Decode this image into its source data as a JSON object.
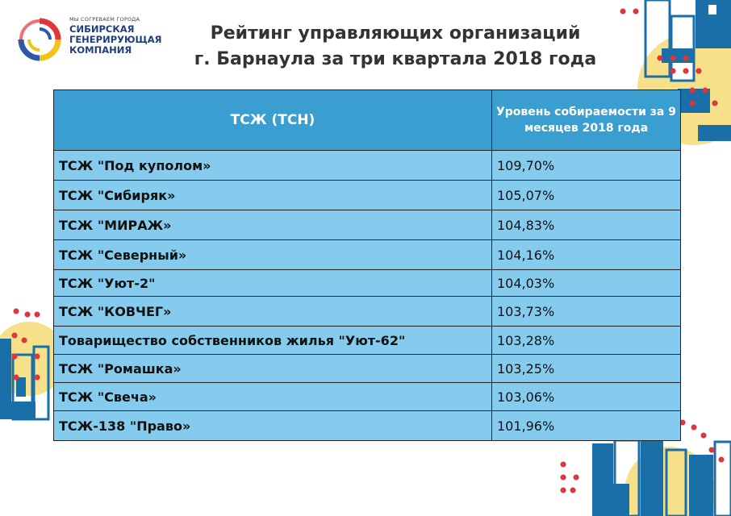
{
  "logo": {
    "tagline": "МЫ СОГРЕВАЕМ ГОРОДА",
    "name_lines": [
      "СИБИРСКАЯ",
      "ГЕНЕРИРУЮЩАЯ",
      "КОМПАНИЯ"
    ],
    "colors": {
      "red": "#e2343b",
      "yellow": "#f2c318",
      "blue": "#2d5aa8"
    }
  },
  "title_lines": [
    "Рейтинг управляющих организаций",
    "г. Барнаула за три квартала 2018 года"
  ],
  "table": {
    "headers": [
      "ТСЖ (ТСН)",
      "Уровень собираемости за 9 месяцев 2018 года"
    ],
    "rows": [
      {
        "name": "ТСЖ \"Под куполом»",
        "value": "109,70%"
      },
      {
        "name": "ТСЖ \"Сибиряк»",
        "value": "105,07%"
      },
      {
        "name": "ТСЖ \"МИРАЖ»",
        "value": "104,83%"
      },
      {
        "name": "ТСЖ \"Северный»",
        "value": "104,16%"
      },
      {
        "name": "ТСЖ \"Уют-2\"",
        "value": "104,03%"
      },
      {
        "name": "ТСЖ \"КОВЧЕГ»",
        "value": "103,73%"
      },
      {
        "name": "Товарищество собственников жилья \"Уют-62\"",
        "value": "103,28%"
      },
      {
        "name": "ТСЖ \"Ромашка»",
        "value": "103,25%"
      },
      {
        "name": "ТСЖ \"Свеча»",
        "value": "103,06%"
      },
      {
        "name": "ТСЖ-138 \"Право»",
        "value": "101,96%"
      }
    ]
  },
  "colors": {
    "header_bg": "#3a9fd0",
    "cell_bg": "#85cbee",
    "deco_blue": "#1a6fa8",
    "deco_yellow": "#f7e08a",
    "deco_red": "#e2343b"
  }
}
